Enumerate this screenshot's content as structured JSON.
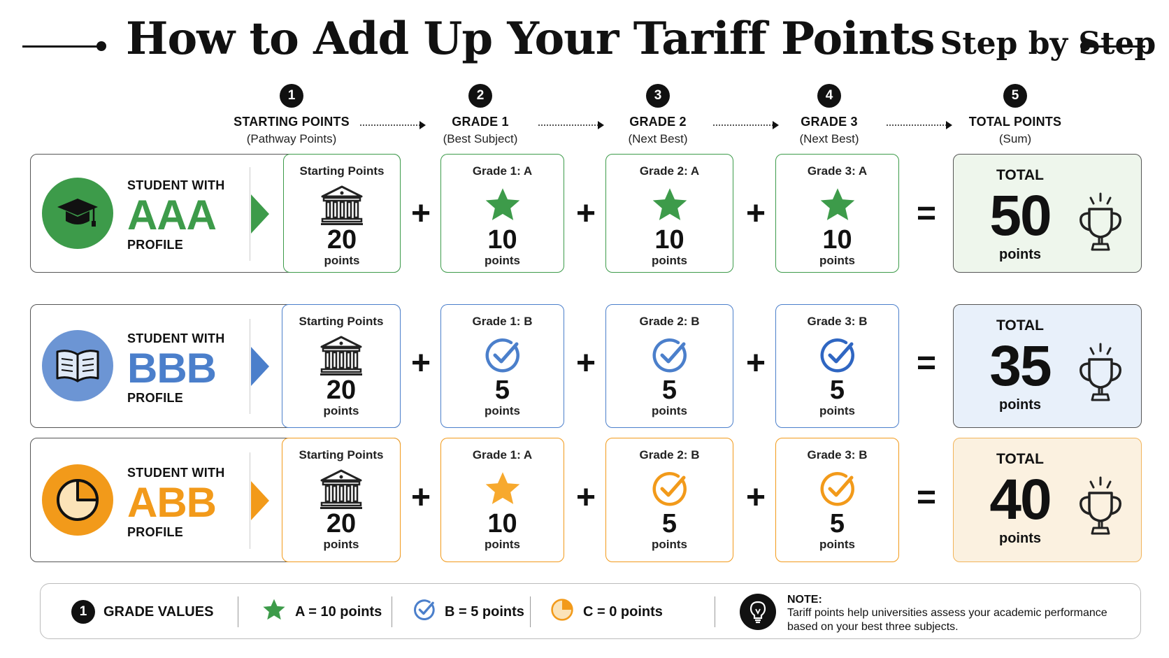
{
  "title": {
    "main": "How to Add Up Your Tariff Points",
    "sub": "Step by Step"
  },
  "steps": [
    {
      "num": "1",
      "label": "STARTING POINTS",
      "sub": "(Pathway Points)"
    },
    {
      "num": "2",
      "label": "GRADE 1",
      "sub": "(Best Subject)"
    },
    {
      "num": "3",
      "label": "GRADE 2",
      "sub": "(Next Best)"
    },
    {
      "num": "4",
      "label": "GRADE 3",
      "sub": "(Next Best)"
    },
    {
      "num": "5",
      "label": "TOTAL POINTS",
      "sub": "(Sum)"
    }
  ],
  "profiles": [
    {
      "pre": "STUDENT WITH",
      "code": "AAA",
      "post": "PROFILE",
      "icon": "graduation-cap-icon",
      "color": "#3d9b4a",
      "bg": "#eef6ec",
      "starting": {
        "title": "Starting Points",
        "value": "20",
        "unit": "points"
      },
      "grades": [
        {
          "title": "Grade 1: A",
          "value": "10",
          "unit": "points",
          "icon": "star-icon"
        },
        {
          "title": "Grade 2: A",
          "value": "10",
          "unit": "points",
          "icon": "star-icon"
        },
        {
          "title": "Grade 3: A",
          "value": "10",
          "unit": "points",
          "icon": "star-icon"
        }
      ],
      "total": {
        "label": "TOTAL",
        "value": "50",
        "unit": "points"
      }
    },
    {
      "pre": "STUDENT WITH",
      "code": "BBB",
      "post": "PROFILE",
      "icon": "open-book-icon",
      "color": "#4b7fcb",
      "bg": "#e8f0fa",
      "starting": {
        "title": "Starting Points",
        "value": "20",
        "unit": "points"
      },
      "grades": [
        {
          "title": "Grade 1: B",
          "value": "5",
          "unit": "points",
          "icon": "check-circle-icon"
        },
        {
          "title": "Grade 2: B",
          "value": "5",
          "unit": "points",
          "icon": "check-circle-icon"
        },
        {
          "title": "Grade 3: B",
          "value": "5",
          "unit": "points",
          "icon": "check-circle-icon"
        }
      ],
      "total": {
        "label": "TOTAL",
        "value": "35",
        "unit": "points"
      }
    },
    {
      "pre": "STUDENT WITH",
      "code": "ABB",
      "post": "PROFILE",
      "icon": "pie-chart-icon",
      "color": "#f29a1a",
      "bg": "#fbf1e0",
      "starting": {
        "title": "Starting Points",
        "value": "20",
        "unit": "points"
      },
      "grades": [
        {
          "title": "Grade 1: A",
          "value": "10",
          "unit": "points",
          "icon": "star-icon"
        },
        {
          "title": "Grade 2: B",
          "value": "5",
          "unit": "points",
          "icon": "check-circle-icon"
        },
        {
          "title": "Grade 3: B",
          "value": "5",
          "unit": "points",
          "icon": "check-circle-icon"
        }
      ],
      "total": {
        "label": "TOTAL",
        "value": "40",
        "unit": "points"
      }
    }
  ],
  "operators": {
    "plus": "+",
    "equals": "="
  },
  "legend": {
    "num": "1",
    "heading": "GRADE VALUES",
    "a": "A = 10 points",
    "b": "B = 5 points",
    "c": "C = 0 points",
    "note_title": "NOTE:",
    "note_body": "Tariff points help universities assess your academic performance based on your best three subjects."
  }
}
